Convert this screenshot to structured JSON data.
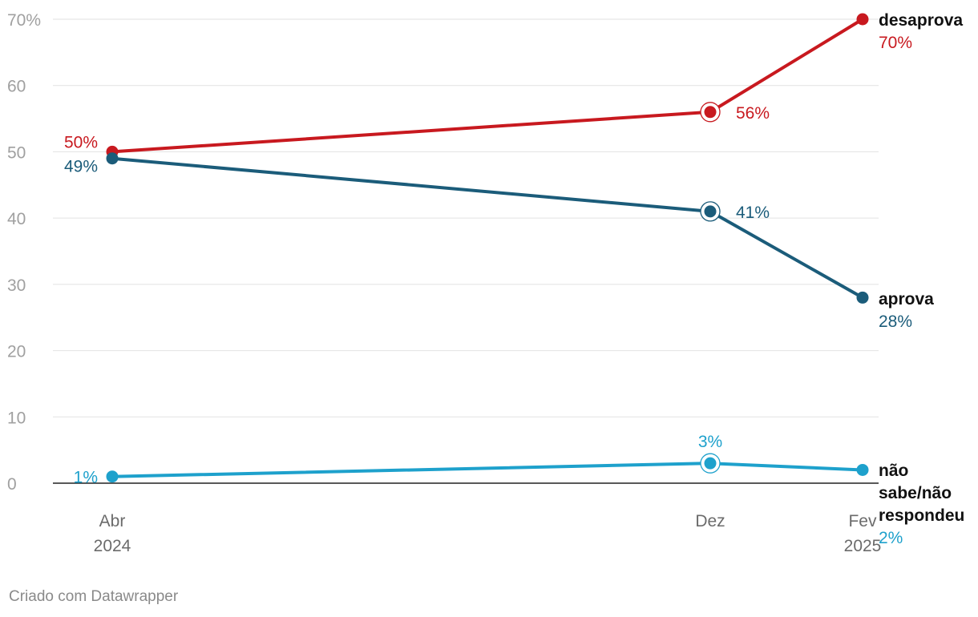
{
  "chart_data": {
    "type": "line",
    "categories": [
      "Abr 2024",
      "Dez",
      "Fev 2025"
    ],
    "x_labels": [
      [
        "Abr",
        "2024"
      ],
      [
        "Dez"
      ],
      [
        "Fev",
        "2025"
      ]
    ],
    "ylim": [
      0,
      70
    ],
    "yticks": [
      "0",
      "10",
      "20",
      "30",
      "40",
      "50",
      "60",
      "70%"
    ],
    "ytick_values": [
      0,
      10,
      20,
      30,
      40,
      50,
      60,
      70
    ],
    "grid": true,
    "series": [
      {
        "name": "desaprova",
        "label_lines": [
          "desaprova"
        ],
        "color": "#c8191f",
        "values": [
          50,
          56,
          70
        ],
        "labels": [
          "50%",
          "56%",
          "70%"
        ]
      },
      {
        "name": "aprova",
        "label_lines": [
          "aprova"
        ],
        "color": "#1b5c7a",
        "values": [
          49,
          41,
          28
        ],
        "labels": [
          "49%",
          "41%",
          "28%"
        ]
      },
      {
        "name": "não sabe/não respondeu",
        "label_lines": [
          "não",
          "sabe/não",
          "respondeu"
        ],
        "color": "#1ea1cc",
        "values": [
          1,
          3,
          2
        ],
        "labels": [
          "1%",
          "3%",
          "2%"
        ]
      }
    ],
    "highlighted_category": "Dez"
  },
  "credit": "Criado com Datawrapper"
}
